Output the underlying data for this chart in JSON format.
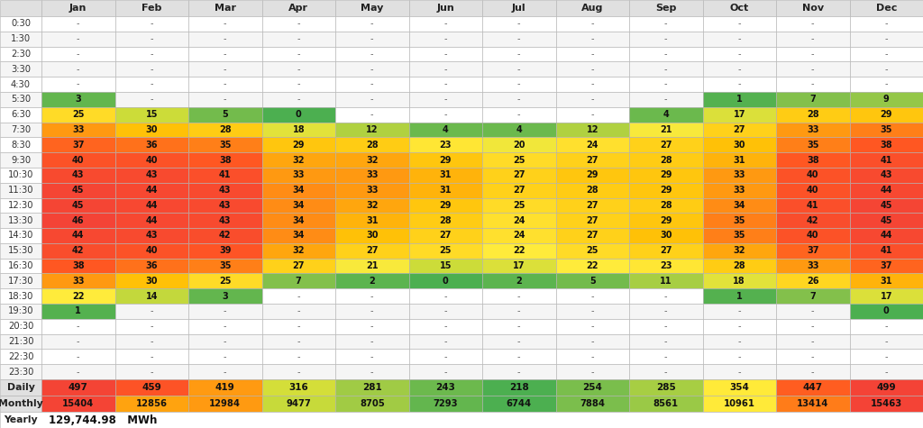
{
  "months": [
    "Jan",
    "Feb",
    "Mar",
    "Apr",
    "May",
    "Jun",
    "Jul",
    "Aug",
    "Sep",
    "Oct",
    "Nov",
    "Dec"
  ],
  "time_slots": [
    "0:30",
    "1:30",
    "2:30",
    "3:30",
    "4:30",
    "5:30",
    "6:30",
    "7:30",
    "8:30",
    "9:30",
    "10:30",
    "11:30",
    "12:30",
    "13:30",
    "14:30",
    "15:30",
    "16:30",
    "17:30",
    "18:30",
    "19:30",
    "20:30",
    "21:30",
    "22:30",
    "23:30"
  ],
  "data": [
    [
      null,
      null,
      null,
      null,
      null,
      null,
      null,
      null,
      null,
      null,
      null,
      null
    ],
    [
      null,
      null,
      null,
      null,
      null,
      null,
      null,
      null,
      null,
      null,
      null,
      null
    ],
    [
      null,
      null,
      null,
      null,
      null,
      null,
      null,
      null,
      null,
      null,
      null,
      null
    ],
    [
      null,
      null,
      null,
      null,
      null,
      null,
      null,
      null,
      null,
      null,
      null,
      null
    ],
    [
      null,
      null,
      null,
      null,
      null,
      null,
      null,
      null,
      null,
      null,
      null,
      null
    ],
    [
      3,
      null,
      null,
      null,
      null,
      null,
      null,
      null,
      null,
      1,
      7,
      9
    ],
    [
      25,
      15,
      5,
      0,
      null,
      null,
      null,
      null,
      4,
      17,
      28,
      29
    ],
    [
      33,
      30,
      28,
      18,
      12,
      4,
      4,
      12,
      21,
      27,
      33,
      35
    ],
    [
      37,
      36,
      35,
      29,
      28,
      23,
      20,
      24,
      27,
      30,
      35,
      38
    ],
    [
      40,
      40,
      38,
      32,
      32,
      29,
      25,
      27,
      28,
      31,
      38,
      41
    ],
    [
      43,
      43,
      41,
      33,
      33,
      31,
      27,
      29,
      29,
      33,
      40,
      43
    ],
    [
      45,
      44,
      43,
      34,
      33,
      31,
      27,
      28,
      29,
      33,
      40,
      44
    ],
    [
      45,
      44,
      43,
      34,
      32,
      29,
      25,
      27,
      28,
      34,
      41,
      45
    ],
    [
      46,
      44,
      43,
      34,
      31,
      28,
      24,
      27,
      29,
      35,
      42,
      45
    ],
    [
      44,
      43,
      42,
      34,
      30,
      27,
      24,
      27,
      30,
      35,
      40,
      44
    ],
    [
      42,
      40,
      39,
      32,
      27,
      25,
      22,
      25,
      27,
      32,
      37,
      41
    ],
    [
      38,
      36,
      35,
      27,
      21,
      15,
      17,
      22,
      23,
      28,
      33,
      37
    ],
    [
      33,
      30,
      25,
      7,
      2,
      0,
      2,
      5,
      11,
      18,
      26,
      31
    ],
    [
      22,
      14,
      3,
      null,
      null,
      null,
      null,
      null,
      null,
      1,
      7,
      17
    ],
    [
      1,
      null,
      null,
      null,
      null,
      null,
      null,
      null,
      null,
      null,
      null,
      0
    ],
    [
      null,
      null,
      null,
      null,
      null,
      null,
      null,
      null,
      null,
      null,
      null,
      null
    ],
    [
      null,
      null,
      null,
      null,
      null,
      null,
      null,
      null,
      null,
      null,
      null,
      null
    ],
    [
      null,
      null,
      null,
      null,
      null,
      null,
      null,
      null,
      null,
      null,
      null,
      null
    ],
    [
      null,
      null,
      null,
      null,
      null,
      null,
      null,
      null,
      null,
      null,
      null,
      null
    ]
  ],
  "daily": [
    497,
    459,
    419,
    316,
    281,
    243,
    218,
    254,
    285,
    354,
    447,
    499
  ],
  "monthly": [
    15404,
    12856,
    12984,
    9477,
    8705,
    7293,
    6744,
    7884,
    8561,
    10961,
    13414,
    15463
  ],
  "yearly_value": "129,744.98",
  "yearly_unit": "MWh",
  "grid_color": "#b0b0b0",
  "header_bg": "#e0e0e0",
  "row_bg_even": "#ffffff",
  "row_bg_odd": "#f5f5f5",
  "cmap_colors": [
    "#4caf50",
    "#8bc34a",
    "#cddc39",
    "#ffeb3b",
    "#ffc107",
    "#ff5722",
    "#f44336"
  ],
  "cmap_vals": [
    0,
    8,
    15,
    22,
    30,
    38,
    46
  ],
  "daily_min": 218,
  "daily_max": 499,
  "monthly_min": 6744,
  "monthly_max": 15463
}
